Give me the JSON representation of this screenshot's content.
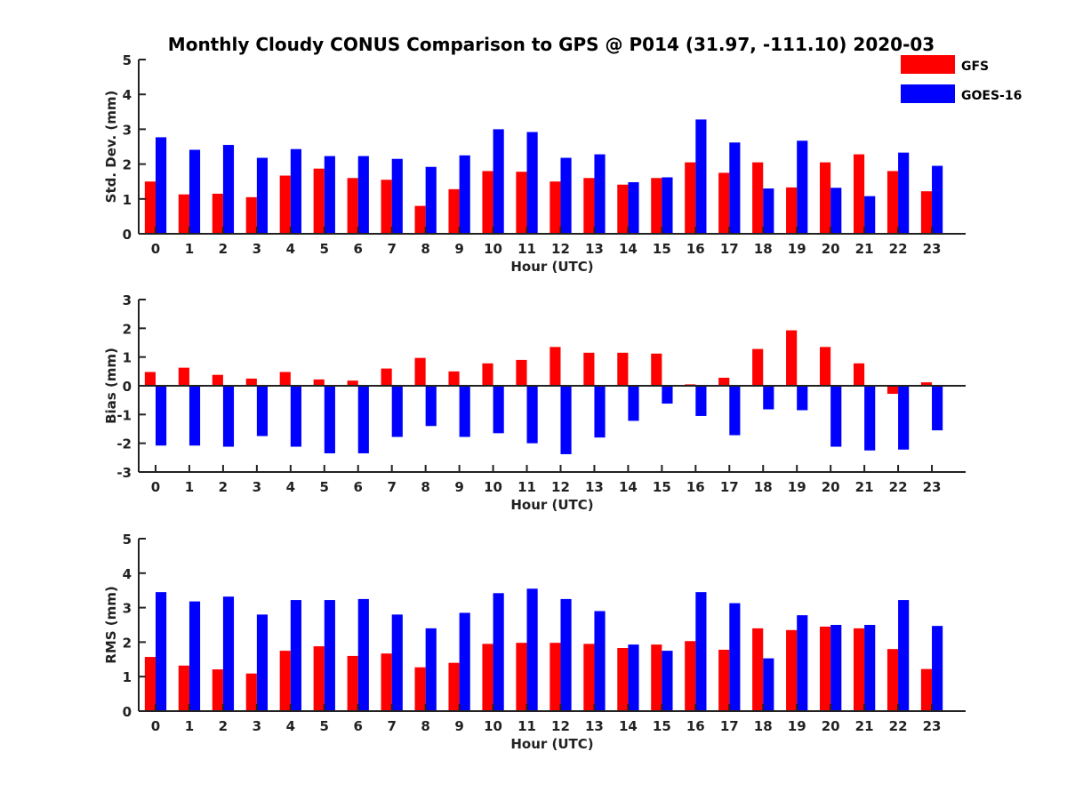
{
  "title": "Monthly Cloudy CONUS Comparison to GPS @ P014 (31.97, -111.10) 2020-03",
  "legend": [
    {
      "name": "GFS",
      "color": "#ff0000"
    },
    {
      "name": "GOES-16",
      "color": "#0000ff"
    }
  ],
  "chart_data": [
    {
      "type": "bar",
      "xlabel": "Hour (UTC)",
      "ylabel": "Std. Dev. (mm)",
      "ylim": [
        0,
        5
      ],
      "yticks": [
        0,
        1,
        2,
        3,
        4,
        5
      ],
      "categories": [
        "0",
        "1",
        "2",
        "3",
        "4",
        "5",
        "6",
        "7",
        "8",
        "9",
        "10",
        "11",
        "12",
        "13",
        "14",
        "15",
        "16",
        "17",
        "18",
        "19",
        "20",
        "21",
        "22",
        "23"
      ],
      "series": [
        {
          "name": "GFS",
          "color": "#ff0000",
          "values": [
            1.5,
            1.13,
            1.15,
            1.05,
            1.67,
            1.87,
            1.6,
            1.55,
            0.8,
            1.28,
            1.8,
            1.78,
            1.5,
            1.6,
            1.41,
            1.6,
            2.05,
            1.75,
            2.05,
            1.33,
            2.05,
            2.28,
            1.8,
            1.22
          ]
        },
        {
          "name": "GOES-16",
          "color": "#0000ff",
          "values": [
            2.77,
            2.41,
            2.55,
            2.18,
            2.43,
            2.23,
            2.23,
            2.15,
            1.92,
            2.25,
            3.0,
            2.92,
            2.18,
            2.28,
            1.48,
            1.62,
            3.28,
            2.62,
            1.3,
            2.67,
            1.32,
            1.08,
            2.33,
            1.95
          ]
        }
      ]
    },
    {
      "type": "bar",
      "xlabel": "Hour (UTC)",
      "ylabel": "Bias (mm)",
      "ylim": [
        -3,
        3
      ],
      "yticks": [
        -3,
        -2,
        -1,
        0,
        1,
        2,
        3
      ],
      "categories": [
        "0",
        "1",
        "2",
        "3",
        "4",
        "5",
        "6",
        "7",
        "8",
        "9",
        "10",
        "11",
        "12",
        "13",
        "14",
        "15",
        "16",
        "17",
        "18",
        "19",
        "20",
        "21",
        "22",
        "23"
      ],
      "series": [
        {
          "name": "GFS",
          "color": "#ff0000",
          "values": [
            0.48,
            0.63,
            0.38,
            0.25,
            0.48,
            0.22,
            0.18,
            0.6,
            0.97,
            0.5,
            0.78,
            0.9,
            1.35,
            1.15,
            1.15,
            1.12,
            0.05,
            0.28,
            1.28,
            1.93,
            1.35,
            0.78,
            -0.28,
            0.12
          ]
        },
        {
          "name": "GOES-16",
          "color": "#0000ff",
          "values": [
            -2.08,
            -2.08,
            -2.12,
            -1.75,
            -2.12,
            -2.35,
            -2.35,
            -1.78,
            -1.4,
            -1.78,
            -1.65,
            -2.0,
            -2.38,
            -1.8,
            -1.22,
            -0.62,
            -1.05,
            -1.72,
            -0.82,
            -0.85,
            -2.12,
            -2.25,
            -2.22,
            -1.55
          ]
        }
      ]
    },
    {
      "type": "bar",
      "xlabel": "Hour (UTC)",
      "ylabel": "RMS (mm)",
      "ylim": [
        0,
        5
      ],
      "yticks": [
        0,
        1,
        2,
        3,
        4,
        5
      ],
      "categories": [
        "0",
        "1",
        "2",
        "3",
        "4",
        "5",
        "6",
        "7",
        "8",
        "9",
        "10",
        "11",
        "12",
        "13",
        "14",
        "15",
        "16",
        "17",
        "18",
        "19",
        "20",
        "21",
        "22",
        "23"
      ],
      "series": [
        {
          "name": "GFS",
          "color": "#ff0000",
          "values": [
            1.57,
            1.32,
            1.21,
            1.09,
            1.75,
            1.88,
            1.6,
            1.67,
            1.27,
            1.4,
            1.95,
            1.98,
            1.98,
            1.95,
            1.83,
            1.93,
            2.03,
            1.78,
            2.4,
            2.35,
            2.45,
            2.4,
            1.8,
            1.22
          ]
        },
        {
          "name": "GOES-16",
          "color": "#0000ff",
          "values": [
            3.45,
            3.18,
            3.32,
            2.8,
            3.22,
            3.22,
            3.25,
            2.8,
            2.4,
            2.85,
            3.42,
            3.55,
            3.25,
            2.9,
            1.93,
            1.75,
            3.45,
            3.13,
            1.53,
            2.78,
            2.5,
            2.5,
            3.22,
            2.47
          ]
        }
      ]
    }
  ]
}
